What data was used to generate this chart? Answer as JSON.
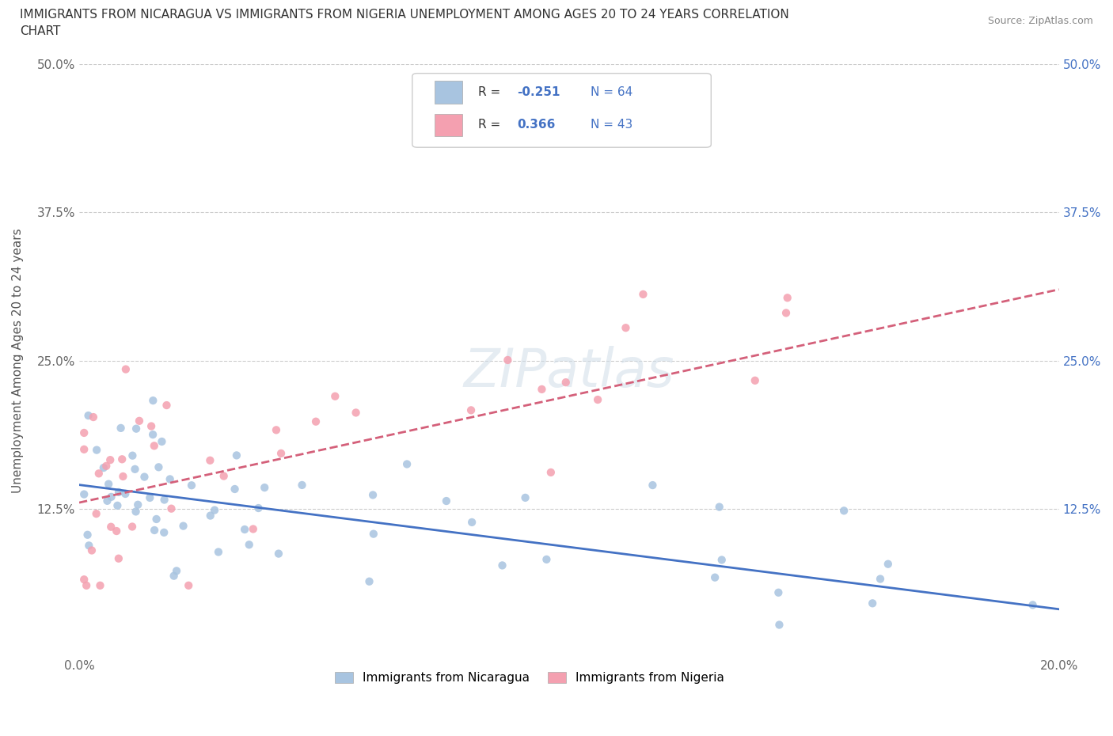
{
  "title_line1": "IMMIGRANTS FROM NICARAGUA VS IMMIGRANTS FROM NIGERIA UNEMPLOYMENT AMONG AGES 20 TO 24 YEARS CORRELATION",
  "title_line2": "CHART",
  "source_text": "Source: ZipAtlas.com",
  "ylabel": "Unemployment Among Ages 20 to 24 years",
  "xlim": [
    0.0,
    0.2
  ],
  "ylim": [
    0.0,
    0.5
  ],
  "xticks": [
    0.0,
    0.05,
    0.1,
    0.15,
    0.2
  ],
  "yticks": [
    0.0,
    0.125,
    0.25,
    0.375,
    0.5
  ],
  "nicaragua_color": "#a8c4e0",
  "nigeria_color": "#f4a0b0",
  "nicaragua_line_color": "#4472c4",
  "nigeria_line_color": "#d4607a",
  "nicaragua_R": -0.251,
  "nicaragua_N": 64,
  "nigeria_R": 0.366,
  "nigeria_N": 43,
  "watermark_text": "ZIPatlas",
  "nic_line_x0": 0.0,
  "nic_line_y0": 0.145,
  "nic_line_x1": 0.2,
  "nic_line_y1": 0.04,
  "nig_line_x0": 0.0,
  "nig_line_y0": 0.13,
  "nig_line_x1": 0.2,
  "nig_line_y1": 0.31
}
